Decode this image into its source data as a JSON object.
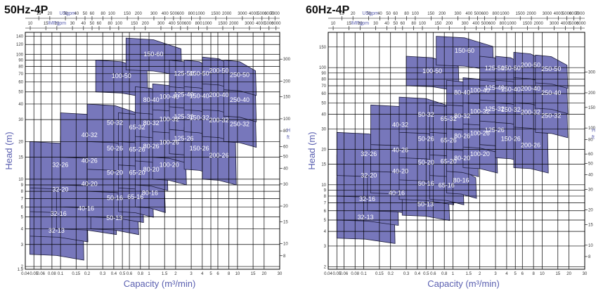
{
  "colors": {
    "region_fill": "#7777bb",
    "region_stroke": "#1c1c3a",
    "accent": "#5a5fb0",
    "grid": "#000000"
  },
  "chart_data": [
    {
      "type": "area",
      "title": "50Hz-4P",
      "xlabel": "Capacity (m³/min)",
      "ylabel": "Head (m)",
      "x_scale": "log",
      "y_scale": "log",
      "xlim": [
        0.04,
        30
      ],
      "ylim": [
        1.9,
        150
      ],
      "x_ticks": [
        "0.04",
        "0.05",
        "0.06",
        "0.08",
        "0.1",
        "0.15",
        "0.2",
        "0.3",
        "0.4",
        "0.5",
        "0.6",
        "0.8",
        "1",
        "1.5",
        "2",
        "3",
        "4",
        "5",
        "6",
        "8",
        "10",
        "15",
        "20",
        "30"
      ],
      "y_ticks": [
        "1.9",
        "2",
        "3",
        "4",
        "5",
        "6",
        "7",
        "8",
        "9",
        "10",
        "15",
        "20",
        "30",
        "40",
        "50",
        "60",
        "70",
        "80",
        "90",
        "100",
        "120",
        "140"
      ],
      "top_axis_usgpm": {
        "label": "USgpm",
        "ticks": [
          "10",
          "15",
          "20",
          "30",
          "40",
          "50",
          "60",
          "80",
          "100",
          "150",
          "200",
          "300",
          "400",
          "500",
          "600",
          "800",
          "1000",
          "1500",
          "2000",
          "3000",
          "4000",
          "5000",
          "6000",
          "7000",
          "8000"
        ]
      },
      "top_axis_impgpm": {
        "label": "IMPgpm",
        "ticks": [
          "10",
          "15",
          "20",
          "30",
          "40",
          "50",
          "60",
          "80",
          "100",
          "150",
          "200",
          "300",
          "400",
          "500",
          "600",
          "800",
          "1000",
          "1500",
          "2000",
          "3000",
          "4000",
          "5000",
          "6000"
        ]
      },
      "right_axis_ft": {
        "label": "H ft",
        "ticks": [
          "300",
          "200",
          "150",
          "100",
          "80",
          "60",
          "50",
          "40",
          "30",
          "20",
          "15",
          "10",
          "8",
          "6"
        ]
      },
      "regions": [
        {
          "label": "32-13",
          "q": [
            0.045,
            0.18
          ],
          "h": [
            2.5,
            6.0
          ]
        },
        {
          "label": "32-16",
          "q": [
            0.045,
            0.2
          ],
          "h": [
            3.5,
            8.0
          ]
        },
        {
          "label": "32-20",
          "q": [
            0.045,
            0.22
          ],
          "h": [
            5.5,
            12.5
          ]
        },
        {
          "label": "32-26",
          "q": [
            0.045,
            0.22
          ],
          "h": [
            8.5,
            20.0
          ]
        },
        {
          "label": "40-16",
          "q": [
            0.09,
            0.42
          ],
          "h": [
            4.0,
            8.5
          ]
        },
        {
          "label": "40-20",
          "q": [
            0.1,
            0.45
          ],
          "h": [
            6.0,
            14.0
          ]
        },
        {
          "label": "40-26",
          "q": [
            0.1,
            0.45
          ],
          "h": [
            9.0,
            22.0
          ]
        },
        {
          "label": "40-32",
          "q": [
            0.1,
            0.45
          ],
          "h": [
            15.0,
            34.0
          ]
        },
        {
          "label": "50-13",
          "q": [
            0.22,
            0.75
          ],
          "h": [
            4.0,
            6.0
          ]
        },
        {
          "label": "50-16",
          "q": [
            0.2,
            0.85
          ],
          "h": [
            5.0,
            10.0
          ]
        },
        {
          "label": "50-20",
          "q": [
            0.2,
            0.85
          ],
          "h": [
            8.0,
            16.0
          ]
        },
        {
          "label": "50-26",
          "q": [
            0.2,
            0.85
          ],
          "h": [
            12.0,
            26.0
          ]
        },
        {
          "label": "50-32",
          "q": [
            0.2,
            0.85
          ],
          "h": [
            20.0,
            40.0
          ]
        },
        {
          "label": "100-50",
          "q": [
            0.25,
            0.95
          ],
          "h": [
            50.0,
            90.0
          ]
        },
        {
          "label": "150-60",
          "q": [
            0.55,
            2.3
          ],
          "h": [
            75.0,
            135.0
          ]
        },
        {
          "label": "65-16",
          "q": [
            0.45,
            1.1
          ],
          "h": [
            5.5,
            9.5
          ]
        },
        {
          "label": "65-20",
          "q": [
            0.45,
            1.2
          ],
          "h": [
            8.5,
            15.0
          ]
        },
        {
          "label": "65-26",
          "q": [
            0.45,
            1.2
          ],
          "h": [
            13.0,
            23.0
          ]
        },
        {
          "label": "65-32",
          "q": [
            0.45,
            1.2
          ],
          "h": [
            20.0,
            34.0
          ]
        },
        {
          "label": "80-16",
          "q": [
            0.7,
            1.5
          ],
          "h": [
            6.0,
            10.0
          ]
        },
        {
          "label": "80-20",
          "q": [
            0.7,
            1.6
          ],
          "h": [
            9.0,
            16.0
          ]
        },
        {
          "label": "80-26",
          "q": [
            0.7,
            1.6
          ],
          "h": [
            14.0,
            24.0
          ]
        },
        {
          "label": "80-32",
          "q": [
            0.7,
            1.6
          ],
          "h": [
            22.0,
            36.0
          ]
        },
        {
          "label": "80-40",
          "q": [
            0.7,
            1.6
          ],
          "h": [
            34.0,
            55.0
          ]
        },
        {
          "label": "100-20",
          "q": [
            1.1,
            2.6
          ],
          "h": [
            10.0,
            17.0
          ]
        },
        {
          "label": "100-26",
          "q": [
            1.1,
            2.6
          ],
          "h": [
            15.0,
            26.0
          ]
        },
        {
          "label": "100-32",
          "q": [
            1.1,
            2.6
          ],
          "h": [
            24.0,
            38.0
          ]
        },
        {
          "label": "100-40",
          "q": [
            1.1,
            2.6
          ],
          "h": [
            36.0,
            58.0
          ]
        },
        {
          "label": "125-26",
          "q": [
            1.7,
            3.6
          ],
          "h": [
            16.0,
            28.0
          ]
        },
        {
          "label": "125-32",
          "q": [
            1.7,
            3.6
          ],
          "h": [
            25.0,
            40.0
          ]
        },
        {
          "label": "125-40",
          "q": [
            1.7,
            3.6
          ],
          "h": [
            38.0,
            60.0
          ]
        },
        {
          "label": "125-50",
          "q": [
            1.7,
            3.6
          ],
          "h": [
            55.0,
            90.0
          ]
        },
        {
          "label": "150-26",
          "q": [
            2.5,
            5.5
          ],
          "h": [
            12.0,
            26.0
          ]
        },
        {
          "label": "150-32",
          "q": [
            2.5,
            5.5
          ],
          "h": [
            24.0,
            40.0
          ]
        },
        {
          "label": "150-40",
          "q": [
            2.5,
            5.5
          ],
          "h": [
            36.0,
            60.0
          ]
        },
        {
          "label": "150-50",
          "q": [
            2.5,
            5.5
          ],
          "h": [
            55.0,
            90.0
          ]
        },
        {
          "label": "200-26",
          "q": [
            4.0,
            9.5
          ],
          "h": [
            10.0,
            24.0
          ]
        },
        {
          "label": "200-32",
          "q": [
            4.0,
            9.5
          ],
          "h": [
            22.0,
            40.0
          ]
        },
        {
          "label": "200-40",
          "q": [
            4.0,
            9.5
          ],
          "h": [
            36.0,
            62.0
          ]
        },
        {
          "label": "200-50",
          "q": [
            4.0,
            9.5
          ],
          "h": [
            58.0,
            95.0
          ]
        },
        {
          "label": "250-32",
          "q": [
            7.0,
            16.0
          ],
          "h": [
            20.0,
            38.0
          ]
        },
        {
          "label": "250-40",
          "q": [
            7.0,
            16.0
          ],
          "h": [
            32.0,
            58.0
          ]
        },
        {
          "label": "250-50",
          "q": [
            7.0,
            16.0
          ],
          "h": [
            52.0,
            90.0
          ]
        }
      ]
    },
    {
      "type": "area",
      "title": "60Hz-4P",
      "xlabel": "Capacity (m³/min)",
      "ylabel": "Head (m)",
      "x_scale": "log",
      "y_scale": "log",
      "xlim": [
        0.04,
        30
      ],
      "ylim": [
        1.9,
        200
      ],
      "x_ticks": [
        "0.04",
        "0.05",
        "0.06",
        "0.08",
        "0.1",
        "0.15",
        "0.2",
        "0.3",
        "0.4",
        "0.5",
        "0.6",
        "0.8",
        "1",
        "1.5",
        "2",
        "3",
        "4",
        "5",
        "6",
        "8",
        "10",
        "15",
        "20",
        "30"
      ],
      "y_ticks": [
        "2",
        "3",
        "4",
        "5",
        "6",
        "7",
        "8",
        "9",
        "10",
        "15",
        "20",
        "30",
        "40",
        "50",
        "60",
        "70",
        "80",
        "90",
        "100",
        "150"
      ],
      "top_axis_usgpm": {
        "label": "USgpm",
        "ticks": [
          "10",
          "15",
          "20",
          "30",
          "40",
          "50",
          "60",
          "80",
          "100",
          "150",
          "200",
          "300",
          "400",
          "500",
          "600",
          "800",
          "1000",
          "1500",
          "2000",
          "3000",
          "4000",
          "5000",
          "6000",
          "7000",
          "8000"
        ]
      },
      "top_axis_impgpm": {
        "label": "IMPgpm",
        "ticks": [
          "10",
          "15",
          "20",
          "30",
          "40",
          "50",
          "60",
          "80",
          "100",
          "150",
          "200",
          "300",
          "400",
          "500",
          "600",
          "800",
          "1000",
          "1500",
          "2000",
          "3000",
          "4000",
          "5000",
          "6000"
        ]
      },
      "right_axis_ft": {
        "label": "H ft",
        "ticks": [
          "300",
          "200",
          "150",
          "100",
          "80",
          "60",
          "50",
          "40",
          "30",
          "20",
          "15",
          "10",
          "8",
          "6"
        ]
      },
      "regions": [
        {
          "label": "32-13",
          "q": [
            0.05,
            0.22
          ],
          "h": [
            3.5,
            8.0
          ]
        },
        {
          "label": "32-16",
          "q": [
            0.05,
            0.24
          ],
          "h": [
            5.0,
            11.5
          ]
        },
        {
          "label": "32-20",
          "q": [
            0.05,
            0.26
          ],
          "h": [
            8.0,
            18.0
          ]
        },
        {
          "label": "32-26",
          "q": [
            0.05,
            0.26
          ],
          "h": [
            12.0,
            28.0
          ]
        },
        {
          "label": "40-16",
          "q": [
            0.11,
            0.5
          ],
          "h": [
            6.0,
            12.0
          ]
        },
        {
          "label": "40-20",
          "q": [
            0.12,
            0.55
          ],
          "h": [
            8.5,
            20.0
          ]
        },
        {
          "label": "40-26",
          "q": [
            0.12,
            0.55
          ],
          "h": [
            13.0,
            30.0
          ]
        },
        {
          "label": "40-32",
          "q": [
            0.12,
            0.55
          ],
          "h": [
            22.0,
            48.0
          ]
        },
        {
          "label": "50-13",
          "q": [
            0.27,
            0.9
          ],
          "h": [
            5.5,
            8.5
          ]
        },
        {
          "label": "50-16",
          "q": [
            0.25,
            1.0
          ],
          "h": [
            7.5,
            14.0
          ]
        },
        {
          "label": "50-20",
          "q": [
            0.25,
            1.0
          ],
          "h": [
            11.0,
            22.0
          ]
        },
        {
          "label": "50-26",
          "q": [
            0.25,
            1.0
          ],
          "h": [
            17.0,
            36.0
          ]
        },
        {
          "label": "50-32",
          "q": [
            0.25,
            1.0
          ],
          "h": [
            28.0,
            56.0
          ]
        },
        {
          "label": "100-50",
          "q": [
            0.3,
            1.15
          ],
          "h": [
            70.0,
            125.0
          ]
        },
        {
          "label": "150-60",
          "q": [
            0.65,
            2.8
          ],
          "h": [
            105.0,
            185.0
          ]
        },
        {
          "label": "65-16",
          "q": [
            0.55,
            1.3
          ],
          "h": [
            7.5,
            13.0
          ]
        },
        {
          "label": "65-20",
          "q": [
            0.55,
            1.45
          ],
          "h": [
            12.0,
            21.0
          ]
        },
        {
          "label": "65-26",
          "q": [
            0.55,
            1.45
          ],
          "h": [
            18.0,
            32.0
          ]
        },
        {
          "label": "65-32",
          "q": [
            0.55,
            1.45
          ],
          "h": [
            28.0,
            48.0
          ]
        },
        {
          "label": "80-16",
          "q": [
            0.85,
            1.8
          ],
          "h": [
            8.5,
            14.0
          ]
        },
        {
          "label": "80-20",
          "q": [
            0.85,
            1.9
          ],
          "h": [
            13.0,
            22.0
          ]
        },
        {
          "label": "80-26",
          "q": [
            0.85,
            1.9
          ],
          "h": [
            20.0,
            34.0
          ]
        },
        {
          "label": "80-32",
          "q": [
            0.85,
            1.9
          ],
          "h": [
            30.0,
            50.0
          ]
        },
        {
          "label": "80-40",
          "q": [
            0.85,
            1.9
          ],
          "h": [
            48.0,
            78.0
          ]
        },
        {
          "label": "100-20",
          "q": [
            1.3,
            3.1
          ],
          "h": [
            14.0,
            24.0
          ]
        },
        {
          "label": "100-26",
          "q": [
            1.3,
            3.1
          ],
          "h": [
            21.0,
            36.0
          ]
        },
        {
          "label": "100-32",
          "q": [
            1.3,
            3.1
          ],
          "h": [
            33.0,
            54.0
          ]
        },
        {
          "label": "100-40",
          "q": [
            1.3,
            3.1
          ],
          "h": [
            50.0,
            82.0
          ]
        },
        {
          "label": "125-26",
          "q": [
            2.0,
            4.3
          ],
          "h": [
            22.0,
            39.0
          ]
        },
        {
          "label": "125-32",
          "q": [
            2.0,
            4.3
          ],
          "h": [
            35.0,
            56.0
          ]
        },
        {
          "label": "125-40",
          "q": [
            2.0,
            4.3
          ],
          "h": [
            53.0,
            85.0
          ]
        },
        {
          "label": "125-50",
          "q": [
            2.0,
            4.3
          ],
          "h": [
            78.0,
            125.0
          ]
        },
        {
          "label": "150-26",
          "q": [
            3.0,
            6.6
          ],
          "h": [
            17.0,
            36.0
          ]
        },
        {
          "label": "150-32",
          "q": [
            3.0,
            6.6
          ],
          "h": [
            34.0,
            56.0
          ]
        },
        {
          "label": "150-40",
          "q": [
            3.0,
            6.6
          ],
          "h": [
            50.0,
            85.0
          ]
        },
        {
          "label": "150-50",
          "q": [
            3.0,
            6.6
          ],
          "h": [
            78.0,
            125.0
          ]
        },
        {
          "label": "200-26",
          "q": [
            4.8,
            11.5
          ],
          "h": [
            14.0,
            34.0
          ]
        },
        {
          "label": "200-32",
          "q": [
            4.8,
            11.5
          ],
          "h": [
            31.0,
            56.0
          ]
        },
        {
          "label": "200-40",
          "q": [
            4.8,
            11.5
          ],
          "h": [
            50.0,
            88.0
          ]
        },
        {
          "label": "200-50",
          "q": [
            4.8,
            11.5
          ],
          "h": [
            82.0,
            135.0
          ]
        },
        {
          "label": "250-32",
          "q": [
            8.4,
            19.0
          ],
          "h": [
            28.0,
            54.0
          ]
        },
        {
          "label": "250-40",
          "q": [
            8.4,
            19.0
          ],
          "h": [
            45.0,
            82.0
          ]
        },
        {
          "label": "250-50",
          "q": [
            8.4,
            19.0
          ],
          "h": [
            74.0,
            128.0
          ]
        }
      ]
    }
  ]
}
